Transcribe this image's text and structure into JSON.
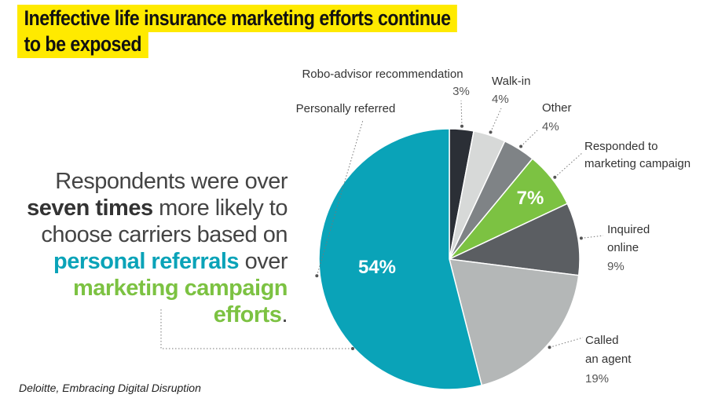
{
  "title": {
    "line1": "Ineffective life insurance marketing efforts continue",
    "line2": "to be exposed"
  },
  "callout": {
    "t1": "Respondents were over ",
    "b1": "seven times",
    "t2": " more likely to choose carriers based on ",
    "teal": "personal referrals",
    "t3": " over ",
    "green": "marketing campaign efforts",
    "t4": "."
  },
  "source": "Deloitte, Embracing Digital Disruption",
  "chart_data": {
    "type": "pie",
    "title": "Ineffective life insurance marketing efforts continue to be exposed",
    "slices": [
      {
        "name": "Robo-advisor recommendation",
        "value": 3,
        "pct_label": "3%",
        "color": "#2b2f36"
      },
      {
        "name": "Walk-in",
        "value": 4,
        "pct_label": "4%",
        "color": "#d7d9d8"
      },
      {
        "name": "Other",
        "value": 4,
        "pct_label": "4%",
        "color": "#7f8386"
      },
      {
        "name": "Responded to marketing campaign",
        "value": 7,
        "pct_label": "7%",
        "color": "#7cc242"
      },
      {
        "name": "Inquired online",
        "value": 9,
        "pct_label": "9%",
        "color": "#5b5e62"
      },
      {
        "name": "Called an agent",
        "value": 19,
        "pct_label": "19%",
        "color": "#b4b7b7"
      },
      {
        "name": "Personally referred",
        "value": 54,
        "pct_label": "54%",
        "color": "#0aa3b8"
      }
    ]
  }
}
